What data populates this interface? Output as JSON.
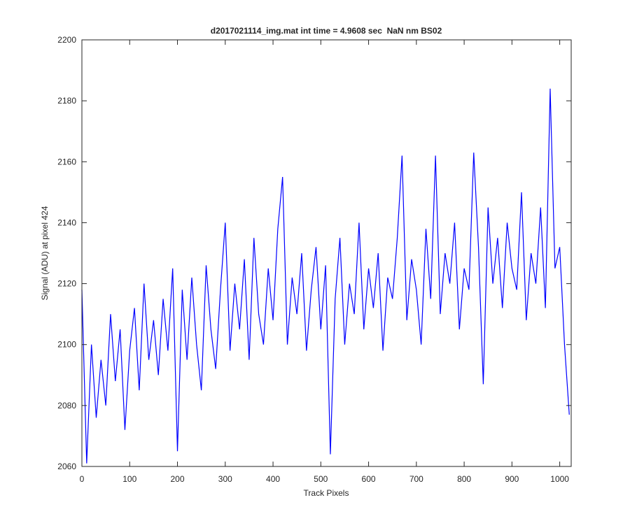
{
  "chart_data": {
    "type": "line",
    "title": "d2017021114_img.mat int time = 4.9608 sec  NaN nm BS02",
    "xlabel": "Track Pixels",
    "ylabel": "Signal (ADU) at pixel 424",
    "x": [
      0,
      10,
      20,
      30,
      40,
      50,
      60,
      70,
      80,
      90,
      100,
      110,
      120,
      130,
      140,
      150,
      160,
      170,
      180,
      190,
      200,
      210,
      220,
      230,
      240,
      250,
      260,
      270,
      280,
      290,
      300,
      310,
      320,
      330,
      340,
      350,
      360,
      370,
      380,
      390,
      400,
      410,
      420,
      430,
      440,
      450,
      460,
      470,
      480,
      490,
      500,
      510,
      520,
      530,
      540,
      550,
      560,
      570,
      580,
      590,
      600,
      610,
      620,
      630,
      640,
      650,
      660,
      670,
      680,
      690,
      700,
      710,
      720,
      730,
      740,
      750,
      760,
      770,
      780,
      790,
      800,
      810,
      820,
      830,
      840,
      850,
      860,
      870,
      880,
      890,
      900,
      910,
      920,
      930,
      940,
      950,
      960,
      970,
      980,
      990,
      1000,
      1010,
      1020
    ],
    "values": [
      2118,
      2061,
      2100,
      2076,
      2095,
      2080,
      2110,
      2088,
      2105,
      2072,
      2098,
      2112,
      2085,
      2120,
      2095,
      2108,
      2090,
      2115,
      2098,
      2125,
      2065,
      2118,
      2095,
      2122,
      2100,
      2085,
      2126,
      2105,
      2092,
      2118,
      2140,
      2098,
      2120,
      2105,
      2128,
      2095,
      2135,
      2110,
      2100,
      2125,
      2108,
      2138,
      2155,
      2100,
      2122,
      2110,
      2130,
      2098,
      2118,
      2132,
      2105,
      2126,
      2064,
      2115,
      2135,
      2100,
      2120,
      2110,
      2140,
      2105,
      2125,
      2112,
      2130,
      2098,
      2122,
      2115,
      2135,
      2162,
      2108,
      2128,
      2118,
      2100,
      2138,
      2115,
      2162,
      2110,
      2130,
      2120,
      2140,
      2105,
      2125,
      2118,
      2163,
      2132,
      2087,
      2145,
      2120,
      2135,
      2112,
      2140,
      2125,
      2118,
      2150,
      2108,
      2130,
      2120,
      2145,
      2112,
      2184,
      2125,
      2132,
      2100,
      2077
    ],
    "color": "#0000ff",
    "xlim": [
      0,
      1024
    ],
    "ylim": [
      2060,
      2200
    ],
    "xticks": [
      0,
      100,
      200,
      300,
      400,
      500,
      600,
      700,
      800,
      900,
      1000
    ],
    "yticks": [
      2060,
      2080,
      2100,
      2120,
      2140,
      2160,
      2180,
      2200
    ]
  }
}
